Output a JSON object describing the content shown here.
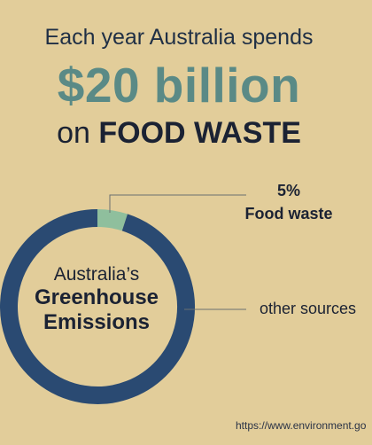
{
  "header": {
    "line1": "Each year Australia spends",
    "amount": "$20 billion",
    "line3_prefix": "on",
    "line3_emphasis": "FOOD WASTE"
  },
  "chart_data": {
    "type": "pie",
    "donut": true,
    "center_label": [
      "Australia’s",
      "Greenhouse",
      "Emissions"
    ],
    "slices": [
      {
        "label": "Food waste",
        "value": 5,
        "value_label": "5%",
        "color": "#8fbf9d"
      },
      {
        "label": "other sources",
        "value": 95,
        "color": "#2a4a72"
      }
    ]
  },
  "labels": {
    "food_pct": "5%",
    "food_name": "Food waste",
    "other": "other sources"
  },
  "footer": {
    "source": "https://www.environment.go"
  }
}
